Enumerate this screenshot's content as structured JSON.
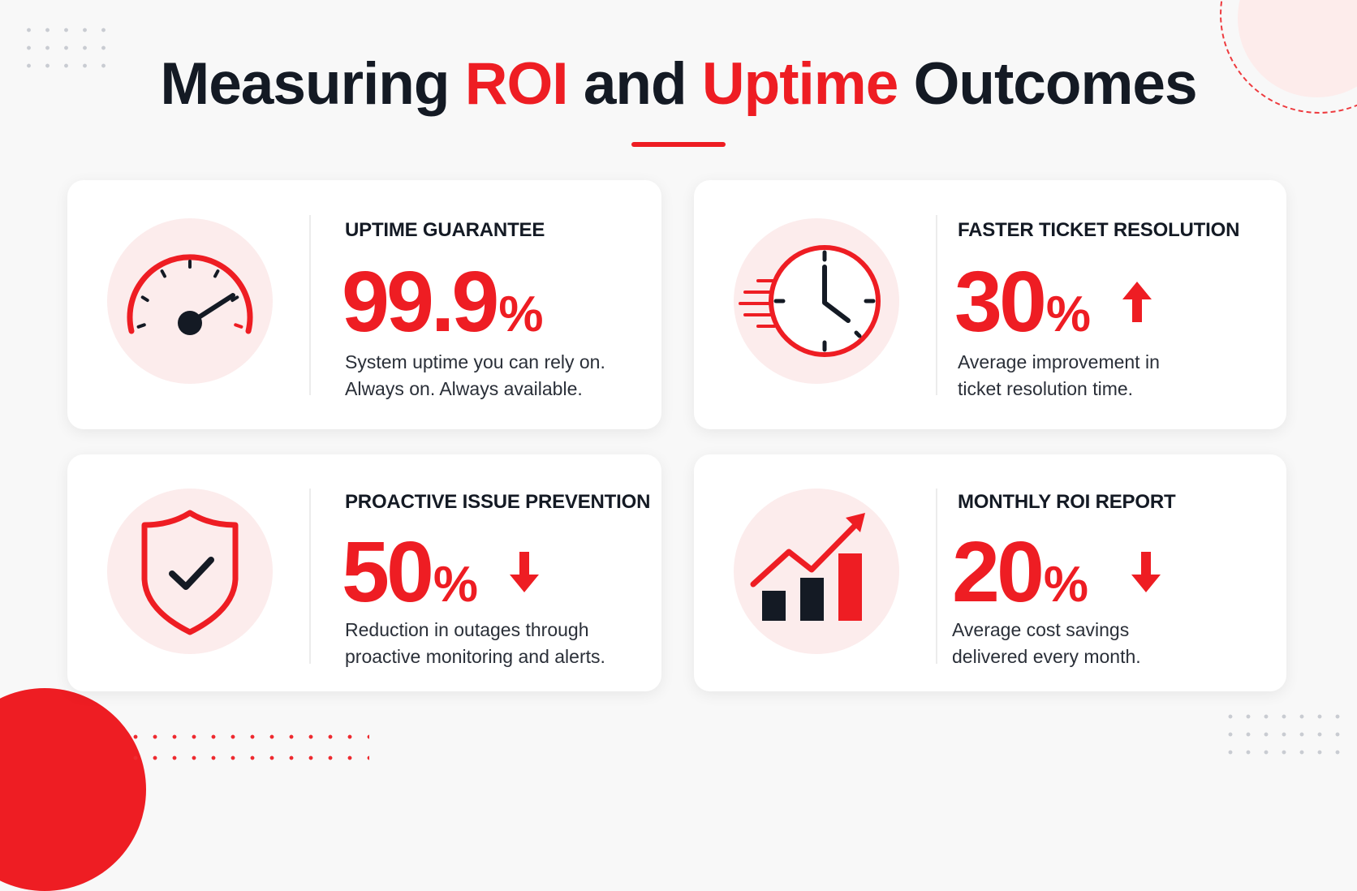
{
  "title": {
    "part1": "Measuring ",
    "part2": "ROI",
    "part3": " and ",
    "part4": "Uptime",
    "part5": " Outcomes"
  },
  "cards": [
    {
      "label": "UPTIME GUARANTEE",
      "value": "99.9",
      "unit": "%",
      "trend": "none",
      "desc": [
        "System uptime you can rely on.",
        "Always on. Always available."
      ],
      "icon": "speedometer-icon"
    },
    {
      "label": "FASTER TICKET RESOLUTION",
      "value": "30",
      "unit": "%",
      "trend": "up",
      "desc": [
        "Average improvement in",
        "ticket resolution time."
      ],
      "icon": "clock-icon"
    },
    {
      "label": "PROACTIVE ISSUE PREVENTION",
      "value": "50",
      "unit": "%",
      "trend": "down",
      "desc": [
        "Reduction in outages through",
        "proactive monitoring and alerts."
      ],
      "icon": "shield-check-icon"
    },
    {
      "label": "MONTHLY ROI REPORT",
      "value": "20",
      "unit": "%",
      "trend": "down",
      "desc": [
        "Average cost savings",
        "delivered every month."
      ],
      "icon": "growth-chart-icon"
    }
  ],
  "colors": {
    "accent": "#ee1d23",
    "dark": "#141a24",
    "icon_bg": "#fcecec",
    "background": "#f8f8f8"
  }
}
